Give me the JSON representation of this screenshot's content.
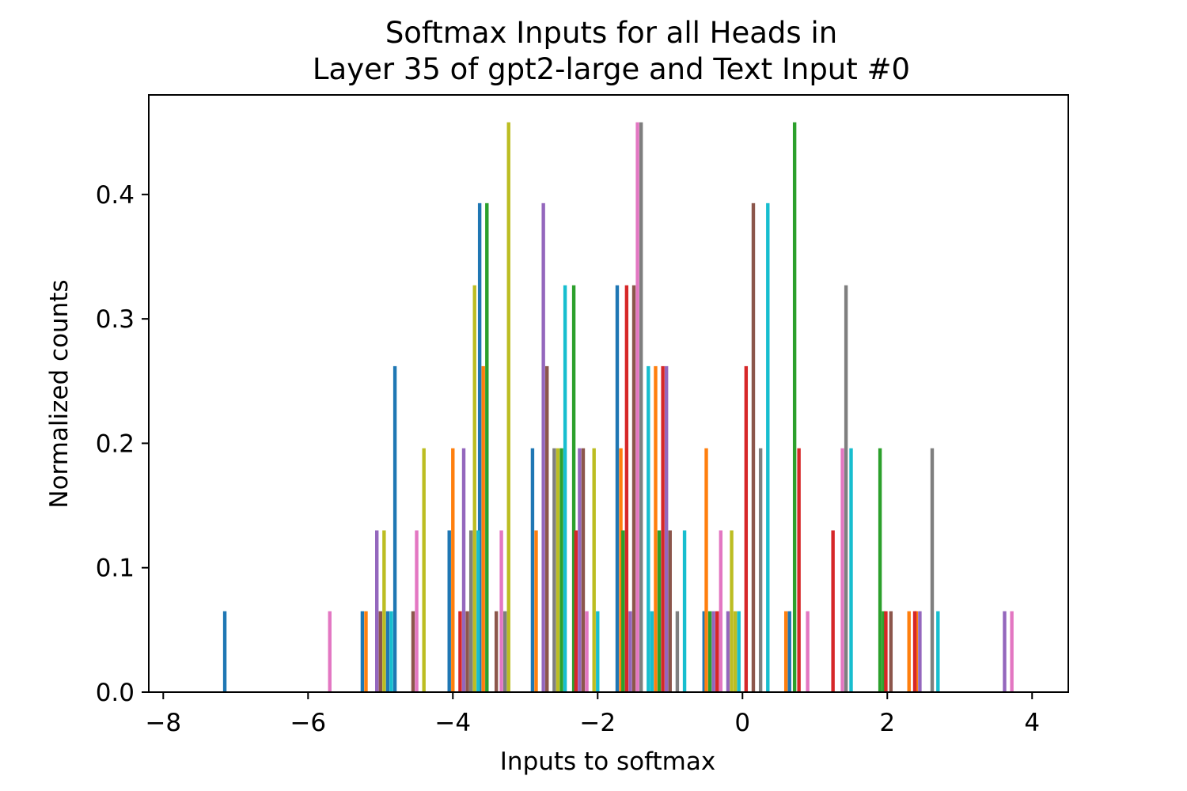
{
  "chart_data": {
    "type": "bar",
    "title_line1": "Softmax Inputs for all Heads in",
    "title_line2": "Layer 35 of gpt2-large and Text Input #0",
    "xlabel": "Inputs to softmax",
    "ylabel": "Normalized counts",
    "xlim": [
      -8.2,
      4.5
    ],
    "ylim": [
      0,
      0.48
    ],
    "xticks": [
      -8,
      -6,
      -4,
      -2,
      0,
      2,
      4
    ],
    "yticks": [
      0.0,
      0.1,
      0.2,
      0.3,
      0.4
    ],
    "xtick_labels": [
      "−8",
      "−6",
      "−4",
      "−2",
      "0",
      "2",
      "4"
    ],
    "ytick_labels": [
      "0.0",
      "0.1",
      "0.2",
      "0.3",
      "0.4"
    ],
    "grid": false,
    "series": [
      {
        "color": "#1f77b4",
        "bars": [
          [
            -7.15,
            0.065
          ],
          [
            -5.25,
            0.065
          ],
          [
            -4.9,
            0.065
          ],
          [
            -4.8,
            0.262
          ],
          [
            -4.05,
            0.13
          ],
          [
            -3.63,
            0.393
          ],
          [
            -2.9,
            0.196
          ],
          [
            -1.73,
            0.327
          ],
          [
            -0.53,
            0.065
          ],
          [
            0.65,
            0.065
          ]
        ]
      },
      {
        "color": "#ff7f0e",
        "bars": [
          [
            -5.2,
            0.065
          ],
          [
            -4.0,
            0.196
          ],
          [
            -3.58,
            0.262
          ],
          [
            -2.85,
            0.13
          ],
          [
            -1.68,
            0.196
          ],
          [
            -1.2,
            0.262
          ],
          [
            -0.5,
            0.196
          ],
          [
            0.6,
            0.065
          ],
          [
            2.3,
            0.065
          ],
          [
            2.4,
            0.065
          ]
        ]
      },
      {
        "color": "#2ca02c",
        "bars": [
          [
            -3.53,
            0.393
          ],
          [
            -2.5,
            0.196
          ],
          [
            -2.33,
            0.327
          ],
          [
            -1.65,
            0.13
          ],
          [
            -1.15,
            0.13
          ],
          [
            -0.45,
            0.065
          ],
          [
            0.72,
            0.458
          ],
          [
            1.9,
            0.196
          ],
          [
            1.95,
            0.065
          ]
        ]
      },
      {
        "color": "#d62728",
        "bars": [
          [
            -3.9,
            0.065
          ],
          [
            -2.3,
            0.13
          ],
          [
            -1.6,
            0.327
          ],
          [
            -1.1,
            0.262
          ],
          [
            -0.35,
            0.065
          ],
          [
            0.05,
            0.262
          ],
          [
            0.78,
            0.196
          ],
          [
            1.25,
            0.13
          ],
          [
            1.98,
            0.065
          ],
          [
            2.38,
            0.065
          ]
        ]
      },
      {
        "color": "#9467bd",
        "bars": [
          [
            -5.05,
            0.13
          ],
          [
            -3.85,
            0.196
          ],
          [
            -2.75,
            0.393
          ],
          [
            -2.25,
            0.196
          ],
          [
            -1.55,
            0.065
          ],
          [
            -1.05,
            0.262
          ],
          [
            -0.4,
            0.065
          ],
          [
            -0.2,
            0.065
          ],
          [
            2.45,
            0.065
          ],
          [
            3.62,
            0.065
          ]
        ]
      },
      {
        "color": "#8c564b",
        "bars": [
          [
            -5.0,
            0.065
          ],
          [
            -4.55,
            0.065
          ],
          [
            -3.8,
            0.065
          ],
          [
            -3.4,
            0.065
          ],
          [
            -2.7,
            0.262
          ],
          [
            -2.2,
            0.196
          ],
          [
            -1.5,
            0.327
          ],
          [
            -1.0,
            0.13
          ],
          [
            0.15,
            0.393
          ],
          [
            2.05,
            0.065
          ]
        ]
      },
      {
        "color": "#e377c2",
        "bars": [
          [
            -5.7,
            0.065
          ],
          [
            -4.5,
            0.13
          ],
          [
            -3.33,
            0.13
          ],
          [
            -2.15,
            0.065
          ],
          [
            -1.45,
            0.458
          ],
          [
            -0.3,
            0.13
          ],
          [
            0.9,
            0.065
          ],
          [
            1.38,
            0.196
          ],
          [
            3.72,
            0.065
          ]
        ]
      },
      {
        "color": "#7f7f7f",
        "bars": [
          [
            -3.75,
            0.13
          ],
          [
            -3.28,
            0.065
          ],
          [
            -2.6,
            0.196
          ],
          [
            -1.4,
            0.458
          ],
          [
            -0.9,
            0.065
          ],
          [
            0.25,
            0.196
          ],
          [
            1.43,
            0.327
          ],
          [
            2.62,
            0.196
          ]
        ]
      },
      {
        "color": "#bcbd22",
        "bars": [
          [
            -4.95,
            0.13
          ],
          [
            -4.4,
            0.196
          ],
          [
            -3.7,
            0.327
          ],
          [
            -3.23,
            0.458
          ],
          [
            -2.55,
            0.196
          ],
          [
            -2.05,
            0.196
          ],
          [
            -0.15,
            0.13
          ],
          [
            -0.1,
            0.065
          ]
        ]
      },
      {
        "color": "#17becf",
        "bars": [
          [
            -4.85,
            0.065
          ],
          [
            -3.65,
            0.13
          ],
          [
            -2.45,
            0.327
          ],
          [
            -2.0,
            0.065
          ],
          [
            -1.3,
            0.262
          ],
          [
            -1.25,
            0.065
          ],
          [
            -0.8,
            0.13
          ],
          [
            -0.05,
            0.065
          ],
          [
            0.35,
            0.393
          ],
          [
            1.5,
            0.196
          ],
          [
            2.7,
            0.065
          ]
        ]
      }
    ]
  }
}
